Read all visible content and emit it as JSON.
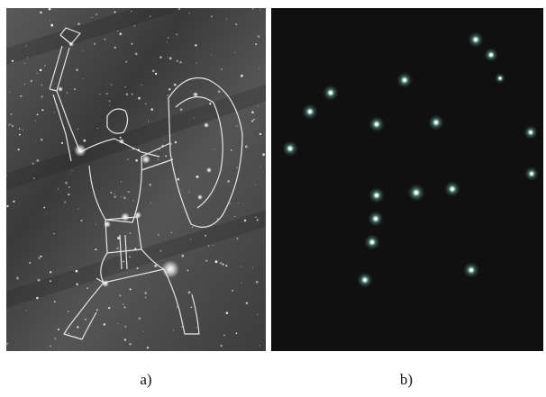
{
  "captions": {
    "a": "a)",
    "b": "b)"
  },
  "panel_a": {
    "description_icon": "orion-constellation-drawing"
  },
  "panel_b": {
    "description_icon": "star-field"
  }
}
